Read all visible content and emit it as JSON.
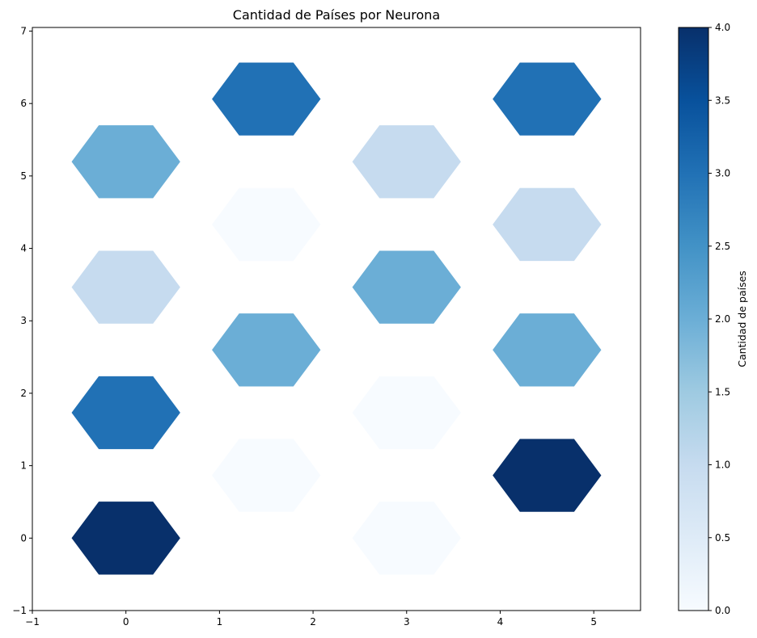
{
  "chart_data": {
    "type": "heatmap",
    "title": "Cantidad de Países por Neurona",
    "xlim": [
      -1,
      5.5
    ],
    "ylim": [
      -1,
      7.05
    ],
    "xticks": [
      -1,
      0,
      1,
      2,
      3,
      4,
      5
    ],
    "yticks": [
      -1,
      0,
      1,
      2,
      3,
      4,
      5,
      6,
      7
    ],
    "xtick_labels": [
      "−1",
      "0",
      "1",
      "2",
      "3",
      "4",
      "5"
    ],
    "ytick_labels": [
      "−1",
      "0",
      "1",
      "2",
      "3",
      "4",
      "5",
      "6",
      "7"
    ],
    "grid": false,
    "colormap": "Blues",
    "colorbar": {
      "label": "Cantidad de países",
      "min": 0,
      "max": 4,
      "ticks": [
        0.0,
        0.5,
        1.0,
        1.5,
        2.0,
        2.5,
        3.0,
        3.5,
        4.0
      ],
      "tick_labels": [
        "0.0",
        "0.5",
        "1.0",
        "1.5",
        "2.0",
        "2.5",
        "3.0",
        "3.5",
        "4.0"
      ],
      "stops": [
        "#f7fbff",
        "#deebf7",
        "#c6dbef",
        "#9ecae1",
        "#6baed6",
        "#4292c6",
        "#2171b5",
        "#08519c",
        "#08306b"
      ]
    },
    "hexagons": [
      {
        "x": 0,
        "y": 0,
        "value": 4
      },
      {
        "x": 1.5,
        "y": 0.866,
        "value": 0
      },
      {
        "x": 3,
        "y": 0,
        "value": 0
      },
      {
        "x": 4.5,
        "y": 0.866,
        "value": 4
      },
      {
        "x": 0,
        "y": 1.732,
        "value": 3
      },
      {
        "x": 1.5,
        "y": 2.598,
        "value": 2
      },
      {
        "x": 3,
        "y": 1.732,
        "value": 0
      },
      {
        "x": 4.5,
        "y": 2.598,
        "value": 2
      },
      {
        "x": 0,
        "y": 3.464,
        "value": 1
      },
      {
        "x": 1.5,
        "y": 4.33,
        "value": 0
      },
      {
        "x": 3,
        "y": 3.464,
        "value": 2
      },
      {
        "x": 4.5,
        "y": 4.33,
        "value": 1
      },
      {
        "x": 0,
        "y": 5.196,
        "value": 2
      },
      {
        "x": 1.5,
        "y": 6.062,
        "value": 3
      },
      {
        "x": 3,
        "y": 5.196,
        "value": 1
      },
      {
        "x": 4.5,
        "y": 6.062,
        "value": 3
      }
    ]
  }
}
